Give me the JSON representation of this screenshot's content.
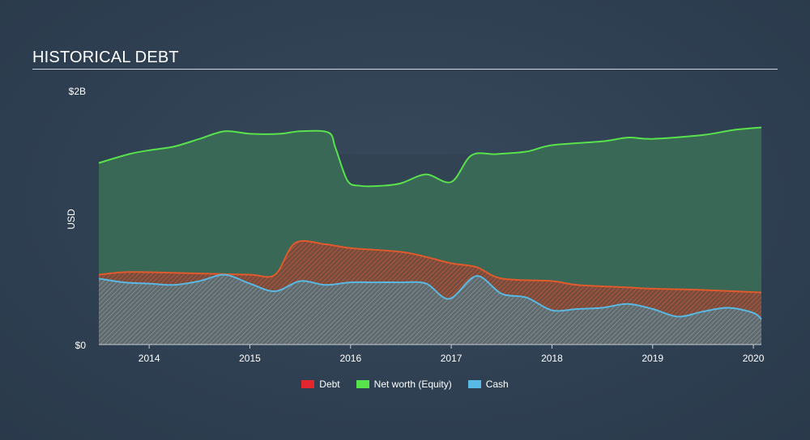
{
  "title": "HISTORICAL DEBT",
  "chart_data": {
    "type": "area",
    "title": "HISTORICAL DEBT",
    "ylabel": "USD",
    "xlabel": "",
    "ylim": [
      0,
      2
    ],
    "y_unit": "B",
    "y_ticks": [
      {
        "value": 0,
        "label": "$0"
      },
      {
        "value": 2,
        "label": "$2B"
      }
    ],
    "x_range": [
      2013.5,
      2020.08
    ],
    "x_ticks": [
      {
        "value": 2014,
        "label": "2014"
      },
      {
        "value": 2015,
        "label": "2015"
      },
      {
        "value": 2016,
        "label": "2016"
      },
      {
        "value": 2017,
        "label": "2017"
      },
      {
        "value": 2018,
        "label": "2018"
      },
      {
        "value": 2019,
        "label": "2019"
      },
      {
        "value": 2020,
        "label": "2020"
      }
    ],
    "series": [
      {
        "name": "Net worth (Equity)",
        "color": "#58e24c",
        "points": [
          [
            2013.5,
            1.43
          ],
          [
            2013.8,
            1.5
          ],
          [
            2014.0,
            1.53
          ],
          [
            2014.25,
            1.56
          ],
          [
            2014.5,
            1.62
          ],
          [
            2014.75,
            1.68
          ],
          [
            2015.0,
            1.66
          ],
          [
            2015.3,
            1.66
          ],
          [
            2015.5,
            1.68
          ],
          [
            2015.78,
            1.67
          ],
          [
            2015.85,
            1.55
          ],
          [
            2015.97,
            1.29
          ],
          [
            2016.1,
            1.25
          ],
          [
            2016.3,
            1.25
          ],
          [
            2016.5,
            1.27
          ],
          [
            2016.75,
            1.34
          ],
          [
            2017.0,
            1.28
          ],
          [
            2017.2,
            1.49
          ],
          [
            2017.45,
            1.5
          ],
          [
            2017.75,
            1.52
          ],
          [
            2018.0,
            1.57
          ],
          [
            2018.5,
            1.6
          ],
          [
            2018.75,
            1.63
          ],
          [
            2019.0,
            1.62
          ],
          [
            2019.5,
            1.65
          ],
          [
            2019.8,
            1.69
          ],
          [
            2020.08,
            1.71
          ]
        ]
      },
      {
        "name": "Debt",
        "color": "#e4262f",
        "points": [
          [
            2013.5,
            0.55
          ],
          [
            2013.75,
            0.57
          ],
          [
            2014.0,
            0.57
          ],
          [
            2014.5,
            0.56
          ],
          [
            2015.0,
            0.55
          ],
          [
            2015.25,
            0.55
          ],
          [
            2015.45,
            0.8
          ],
          [
            2015.75,
            0.79
          ],
          [
            2016.0,
            0.76
          ],
          [
            2016.5,
            0.73
          ],
          [
            2016.75,
            0.69
          ],
          [
            2017.0,
            0.64
          ],
          [
            2017.25,
            0.61
          ],
          [
            2017.5,
            0.52
          ],
          [
            2018.0,
            0.5
          ],
          [
            2018.25,
            0.47
          ],
          [
            2018.75,
            0.45
          ],
          [
            2019.0,
            0.44
          ],
          [
            2019.5,
            0.43
          ],
          [
            2020.08,
            0.41
          ]
        ]
      },
      {
        "name": "Cash",
        "color": "#57b9e4",
        "points": [
          [
            2013.5,
            0.52
          ],
          [
            2013.75,
            0.49
          ],
          [
            2014.0,
            0.48
          ],
          [
            2014.25,
            0.47
          ],
          [
            2014.5,
            0.5
          ],
          [
            2014.75,
            0.55
          ],
          [
            2015.0,
            0.48
          ],
          [
            2015.25,
            0.42
          ],
          [
            2015.5,
            0.5
          ],
          [
            2015.75,
            0.47
          ],
          [
            2016.0,
            0.49
          ],
          [
            2016.25,
            0.49
          ],
          [
            2016.5,
            0.49
          ],
          [
            2016.75,
            0.48
          ],
          [
            2016.98,
            0.36
          ],
          [
            2017.25,
            0.54
          ],
          [
            2017.5,
            0.4
          ],
          [
            2017.75,
            0.37
          ],
          [
            2018.0,
            0.27
          ],
          [
            2018.25,
            0.28
          ],
          [
            2018.5,
            0.29
          ],
          [
            2018.75,
            0.32
          ],
          [
            2019.0,
            0.28
          ],
          [
            2019.25,
            0.22
          ],
          [
            2019.5,
            0.26
          ],
          [
            2019.75,
            0.29
          ],
          [
            2020.0,
            0.25
          ],
          [
            2020.08,
            0.2
          ]
        ]
      }
    ],
    "legend": [
      {
        "name": "Debt",
        "color": "#e4262f"
      },
      {
        "name": "Net worth (Equity)",
        "color": "#58e24c"
      },
      {
        "name": "Cash",
        "color": "#57b9e4"
      }
    ]
  }
}
